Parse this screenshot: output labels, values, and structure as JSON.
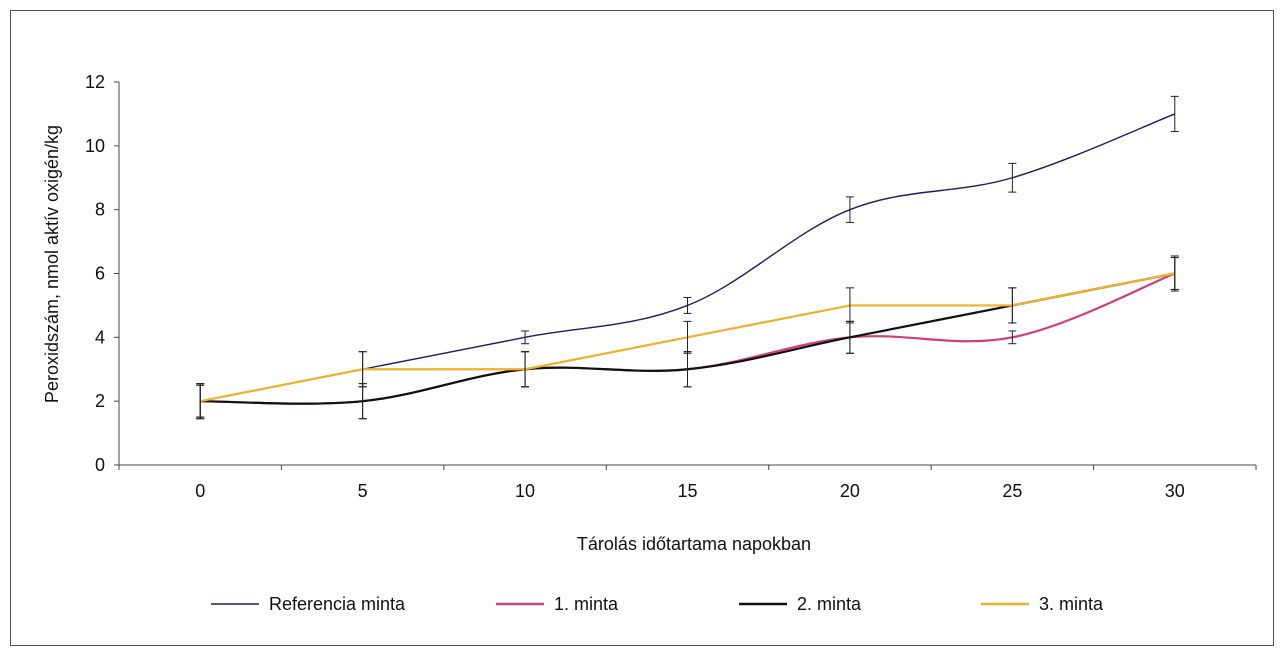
{
  "chart_data": {
    "type": "line",
    "x": [
      0,
      5,
      10,
      15,
      20,
      25,
      30
    ],
    "xticks": [
      "0",
      "5",
      "10",
      "15",
      "20",
      "25",
      "30"
    ],
    "yticks": [
      "0",
      "2",
      "4",
      "6",
      "8",
      "10",
      "12"
    ],
    "ylim": [
      0,
      12
    ],
    "xlabel": "Tárolás időtartama napokban",
    "ylabel": "Peroxidszám, nmol aktív oxigén/kg",
    "grid": false,
    "legend_position": "bottom",
    "series": [
      {
        "name": "Referencia minta",
        "color": "#1f1a6b",
        "values": [
          2,
          3,
          4,
          5,
          8,
          9,
          11
        ],
        "error": [
          0.55,
          0.55,
          0.2,
          0.25,
          0.4,
          0.45,
          0.55
        ],
        "smooth": true
      },
      {
        "name": "1. minta",
        "color": "#d23c78",
        "values": [
          2,
          2,
          3,
          3,
          4,
          4,
          6
        ],
        "error": [
          0.5,
          0.55,
          0.55,
          0.55,
          0.5,
          0.2,
          0.5
        ],
        "smooth": true
      },
      {
        "name": "2. minta",
        "color": "#111111",
        "values": [
          2,
          2,
          3,
          3,
          4,
          5,
          6
        ],
        "error": [
          0.5,
          0.55,
          0.55,
          0.55,
          0.5,
          0.55,
          0.5
        ],
        "smooth": true
      },
      {
        "name": "3. minta",
        "color": "#f0b02a",
        "values": [
          2,
          3,
          3,
          4,
          5,
          5,
          6
        ],
        "error": [
          0.55,
          0.55,
          0.55,
          0.5,
          0.55,
          0.55,
          0.55
        ],
        "smooth": false
      }
    ]
  }
}
